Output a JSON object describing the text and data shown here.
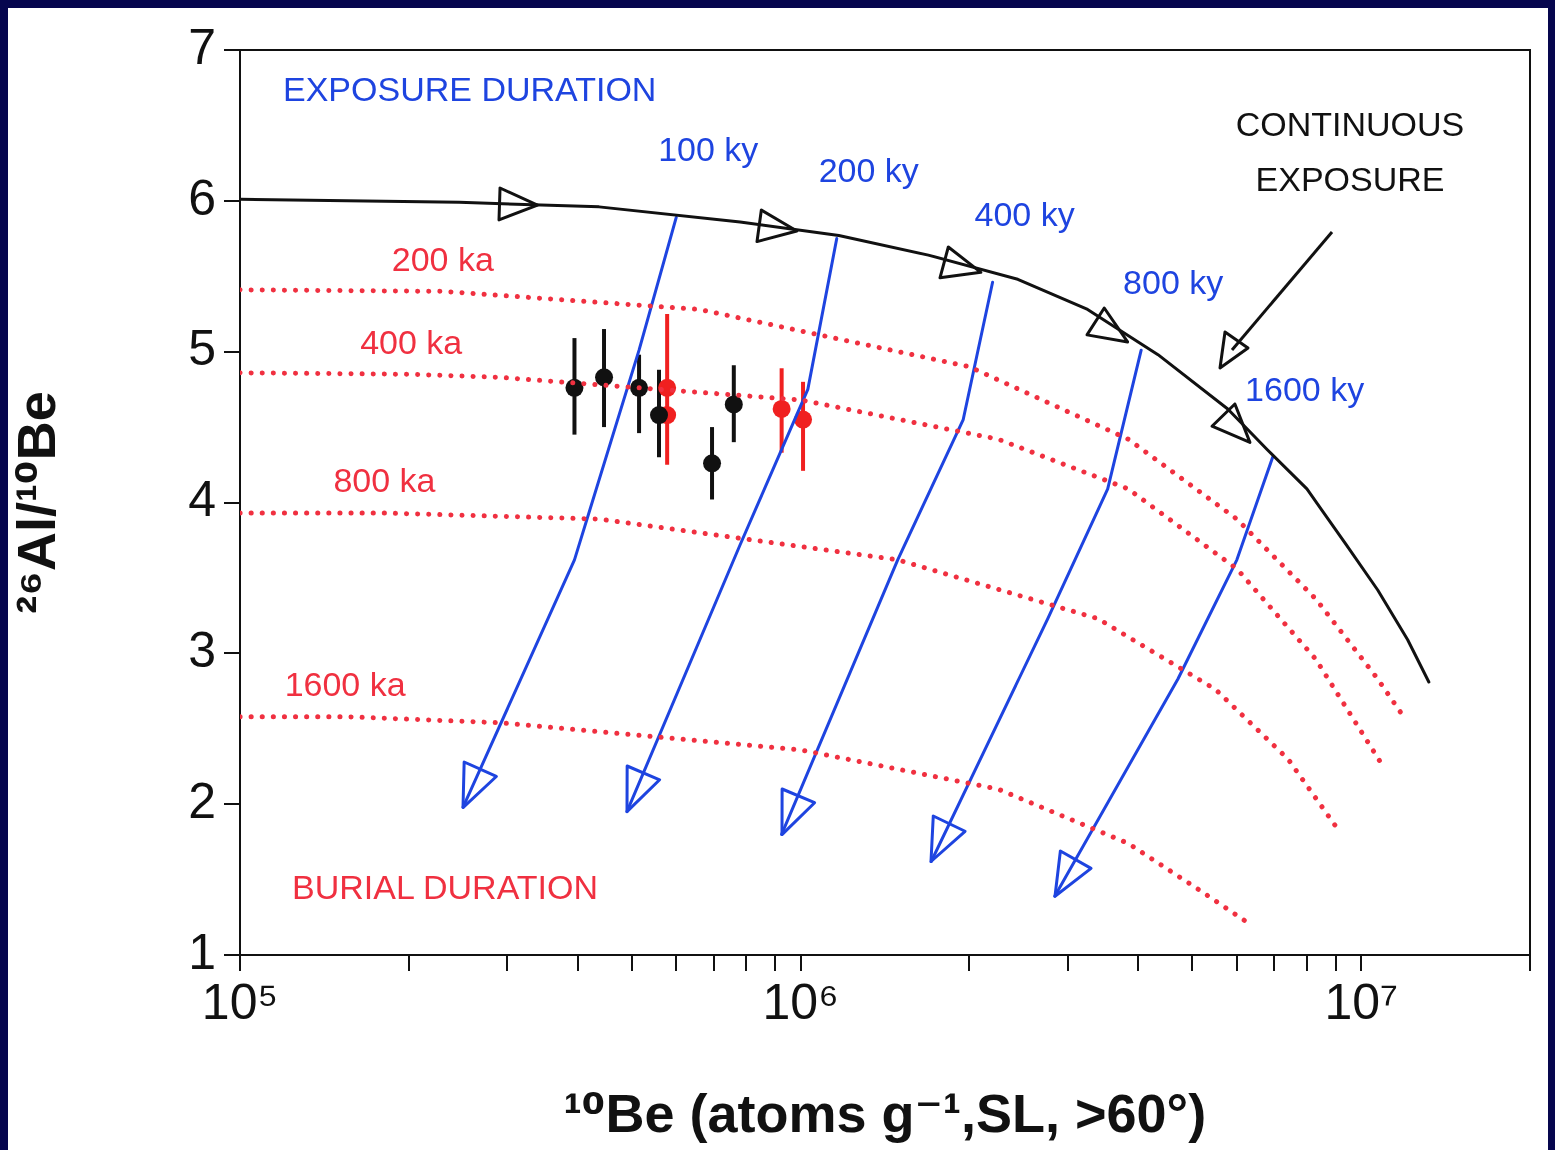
{
  "chart_data": {
    "type": "line",
    "xlabel": "¹⁰Be (atoms g⁻¹,SL, >60°)",
    "ylabel": "²⁶Al/¹⁰Be",
    "log": "x",
    "xlim": [
      100000,
      20000000
    ],
    "ylim": [
      1,
      7
    ],
    "xticks": [
      {
        "value": 100000,
        "label": "10⁵"
      },
      {
        "value": 200000,
        "label": null
      },
      {
        "value": 300000,
        "label": null
      },
      {
        "value": 400000,
        "label": null
      },
      {
        "value": 500000,
        "label": null
      },
      {
        "value": 600000,
        "label": null
      },
      {
        "value": 700000,
        "label": null
      },
      {
        "value": 800000,
        "label": null
      },
      {
        "value": 900000,
        "label": null
      },
      {
        "value": 1000000,
        "label": "10⁶"
      },
      {
        "value": 2000000,
        "label": null
      },
      {
        "value": 3000000,
        "label": null
      },
      {
        "value": 4000000,
        "label": null
      },
      {
        "value": 5000000,
        "label": null
      },
      {
        "value": 6000000,
        "label": null
      },
      {
        "value": 7000000,
        "label": null
      },
      {
        "value": 8000000,
        "label": null
      },
      {
        "value": 9000000,
        "label": null
      },
      {
        "value": 10000000,
        "label": "10⁷"
      },
      {
        "value": 20000000,
        "label": null
      }
    ],
    "yticks": [
      1,
      2,
      3,
      4,
      5,
      6,
      7
    ],
    "annotations": [
      "EXPOSURE DURATION",
      "BURIAL DURATION",
      "CONTINUOUS EXPOSURE"
    ],
    "series": [
      {
        "type": "line",
        "color": "#111111",
        "line_style": "solid",
        "x": [
          100000,
          246000,
          437000,
          780000,
          1170000,
          1690000,
          2440000,
          3250000,
          4340000,
          5780000,
          6800000,
          8000000,
          9400000,
          10700000,
          12100000,
          13200000
        ],
        "values": [
          6.01,
          5.99,
          5.96,
          5.86,
          5.77,
          5.64,
          5.48,
          5.28,
          4.98,
          4.62,
          4.35,
          4.09,
          3.72,
          3.42,
          3.09,
          2.81
        ]
      },
      {
        "type": "line",
        "name": "200 ka",
        "color": "#f03040",
        "line_style": "dotted",
        "x": [
          100000,
          230000,
          660000,
          2000000,
          3840000,
          6000000,
          8300000,
          10700000,
          12000000
        ],
        "values": [
          5.41,
          5.4,
          5.28,
          4.9,
          4.42,
          3.89,
          3.36,
          2.83,
          2.56
        ]
      },
      {
        "type": "line",
        "name": "400 ka",
        "color": "#f03040",
        "line_style": "dotted",
        "x": [
          100000,
          202000,
          290000,
          1000000,
          2250000,
          3840000,
          6000000,
          8300000,
          10900000
        ],
        "values": [
          4.86,
          4.85,
          4.83,
          4.68,
          4.42,
          4.09,
          3.56,
          2.96,
          2.26
        ]
      },
      {
        "type": "line",
        "name": "800 ka",
        "color": "#f03040",
        "line_style": "dotted",
        "x": [
          100000,
          181000,
          437000,
          1490000,
          3390000,
          5500000,
          7400000,
          9100000
        ],
        "values": [
          3.93,
          3.93,
          3.89,
          3.62,
          3.23,
          2.76,
          2.3,
          1.83
        ]
      },
      {
        "type": "line",
        "name": "1600 ka",
        "color": "#f03040",
        "line_style": "dotted",
        "x": [
          100000,
          154000,
          290000,
          1000000,
          2250000,
          3840000,
          5100000,
          6300000
        ],
        "values": [
          2.58,
          2.58,
          2.54,
          2.36,
          2.1,
          1.74,
          1.44,
          1.21
        ]
      },
      {
        "type": "line",
        "name": "100 ky",
        "color": "#1e44e0",
        "line_style": "solid",
        "x": [
          600000,
          515000,
          395000,
          250000
        ],
        "values": [
          5.89,
          5.01,
          3.62,
          1.98
        ]
      },
      {
        "type": "line",
        "name": "200 ky",
        "color": "#1e44e0",
        "line_style": "solid",
        "x": [
          1160000,
          1030000,
          780000,
          490000
        ],
        "values": [
          5.75,
          4.75,
          3.72,
          1.95
        ]
      },
      {
        "type": "line",
        "name": "400 ky",
        "color": "#1e44e0",
        "line_style": "solid",
        "x": [
          2200000,
          1950000,
          1490000,
          925000
        ],
        "values": [
          5.46,
          4.55,
          3.62,
          1.8
        ]
      },
      {
        "type": "line",
        "name": "800 ky",
        "color": "#1e44e0",
        "line_style": "solid",
        "x": [
          4050000,
          3530000,
          2760000,
          1710000
        ],
        "values": [
          5.01,
          4.09,
          3.23,
          1.62
        ]
      },
      {
        "type": "line",
        "name": "1600 ky",
        "color": "#1e44e0",
        "line_style": "solid",
        "x": [
          6950000,
          6000000,
          4710000,
          2840000
        ],
        "values": [
          4.3,
          3.62,
          2.83,
          1.39
        ]
      },
      {
        "type": "scatter",
        "color": "#111111",
        "marker": "circle",
        "x": [
          395000,
          446000,
          515000,
          559000,
          695000,
          760000
        ],
        "values": [
          4.76,
          4.83,
          4.76,
          4.58,
          4.26,
          4.65
        ],
        "errors": [
          [
            4.45,
            5.09
          ],
          [
            4.5,
            5.15
          ],
          [
            4.46,
            4.98
          ],
          [
            4.3,
            4.88
          ],
          [
            4.02,
            4.5
          ],
          [
            4.4,
            4.91
          ]
        ]
      },
      {
        "type": "scatter",
        "color": "#f02020",
        "marker": "circle",
        "x": [
          578000,
          578000,
          925000,
          1010000
        ],
        "values": [
          4.76,
          4.58,
          4.62,
          4.55
        ],
        "errors": [
          [
            4.25,
            5.25
          ],
          null,
          [
            4.33,
            4.89
          ],
          [
            4.21,
            4.8
          ]
        ]
      }
    ]
  }
}
